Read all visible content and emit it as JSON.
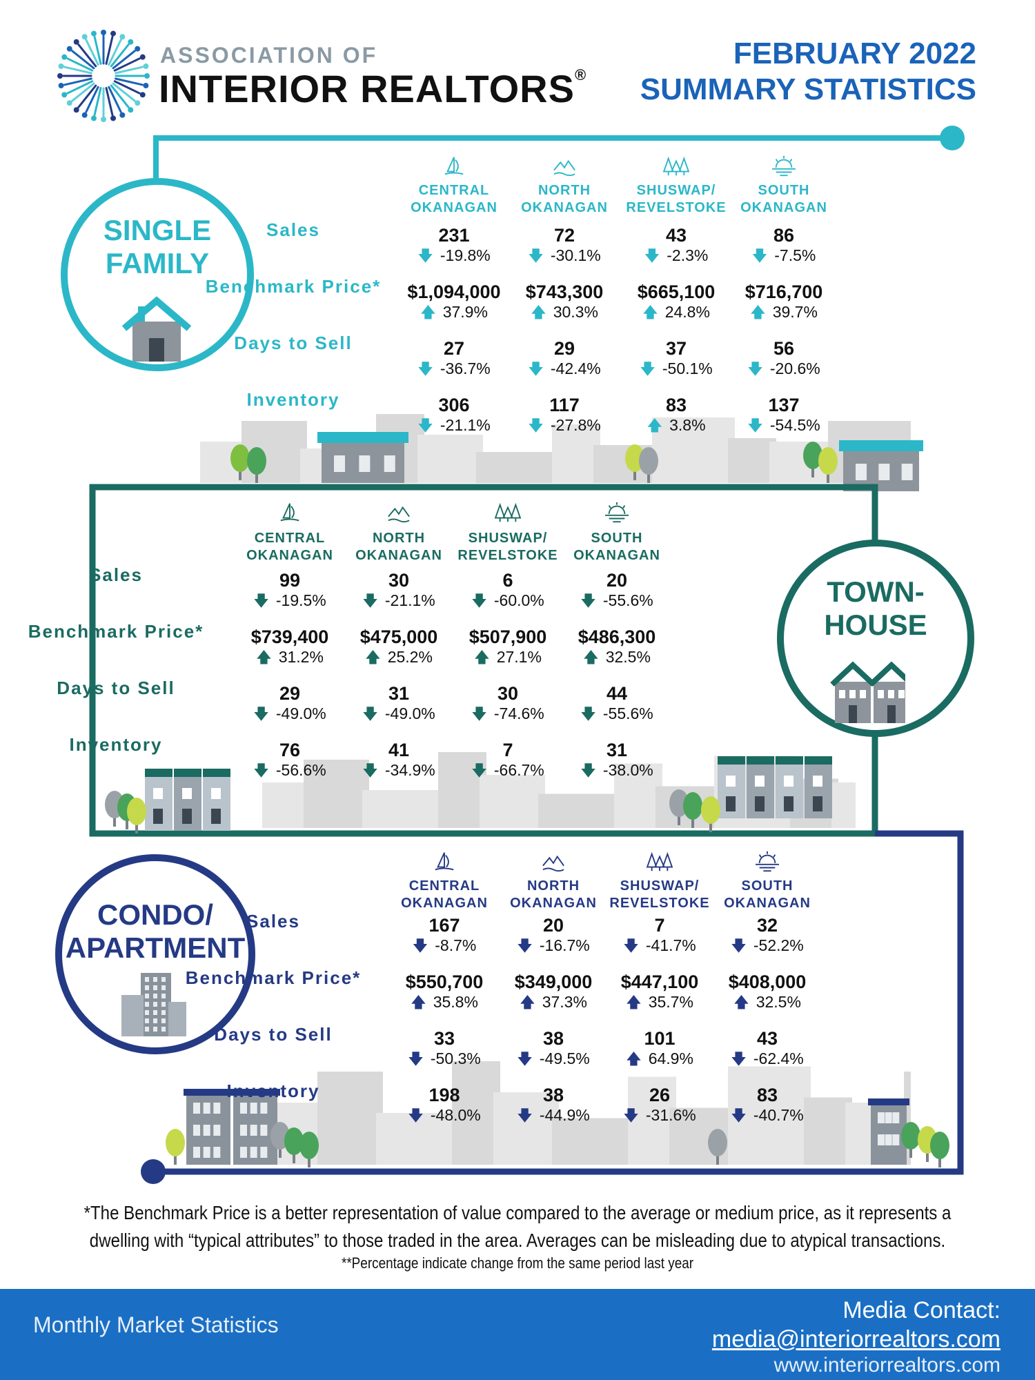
{
  "header": {
    "org_top": "ASSOCIATION OF",
    "org_main": "INTERIOR REALTORS",
    "registered": "®",
    "title_line1": "FEBRUARY 2022",
    "title_line2": "SUMMARY STATISTICS"
  },
  "colors": {
    "single_family": "#2bb7c8",
    "townhouse": "#1a6b61",
    "condo": "#253a85",
    "title_blue": "#1a63b8",
    "footer_blue": "#1a6fc4",
    "skyline_gray": "#d9d9d9"
  },
  "regions": [
    {
      "line1": "CENTRAL",
      "line2": "OKANAGAN",
      "icon": "sailboat-icon"
    },
    {
      "line1": "NORTH",
      "line2": "OKANAGAN",
      "icon": "mountains-icon"
    },
    {
      "line1": "SHUSWAP/",
      "line2": "REVELSTOKE",
      "icon": "trees-icon"
    },
    {
      "line1": "SOUTH",
      "line2": "OKANAGAN",
      "icon": "sunset-icon"
    }
  ],
  "row_labels": [
    "Sales",
    "Benchmark Price*",
    "Days to Sell",
    "Inventory"
  ],
  "sections": {
    "single_family": {
      "label_line1": "SINGLE",
      "label_line2": "FAMILY",
      "rows": [
        [
          {
            "v": "231",
            "c": "-19.8%",
            "d": "down"
          },
          {
            "v": "72",
            "c": "-30.1%",
            "d": "down"
          },
          {
            "v": "43",
            "c": "-2.3%",
            "d": "down"
          },
          {
            "v": "86",
            "c": "-7.5%",
            "d": "down"
          }
        ],
        [
          {
            "v": "$1,094,000",
            "c": "37.9%",
            "d": "up"
          },
          {
            "v": "$743,300",
            "c": "30.3%",
            "d": "up"
          },
          {
            "v": "$665,100",
            "c": "24.8%",
            "d": "up"
          },
          {
            "v": "$716,700",
            "c": "39.7%",
            "d": "up"
          }
        ],
        [
          {
            "v": "27",
            "c": "-36.7%",
            "d": "down"
          },
          {
            "v": "29",
            "c": "-42.4%",
            "d": "down"
          },
          {
            "v": "37",
            "c": "-50.1%",
            "d": "down"
          },
          {
            "v": "56",
            "c": "-20.6%",
            "d": "down"
          }
        ],
        [
          {
            "v": "306",
            "c": "-21.1%",
            "d": "down"
          },
          {
            "v": "117",
            "c": "-27.8%",
            "d": "down"
          },
          {
            "v": "83",
            "c": "3.8%",
            "d": "up"
          },
          {
            "v": "137",
            "c": "-54.5%",
            "d": "down"
          }
        ]
      ]
    },
    "townhouse": {
      "label_line1": "TOWN-",
      "label_line2": "HOUSE",
      "rows": [
        [
          {
            "v": "99",
            "c": "-19.5%",
            "d": "down"
          },
          {
            "v": "30",
            "c": "-21.1%",
            "d": "down"
          },
          {
            "v": "6",
            "c": "-60.0%",
            "d": "down"
          },
          {
            "v": "20",
            "c": "-55.6%",
            "d": "down"
          }
        ],
        [
          {
            "v": "$739,400",
            "c": "31.2%",
            "d": "up"
          },
          {
            "v": "$475,000",
            "c": "25.2%",
            "d": "up"
          },
          {
            "v": "$507,900",
            "c": "27.1%",
            "d": "up"
          },
          {
            "v": "$486,300",
            "c": "32.5%",
            "d": "up"
          }
        ],
        [
          {
            "v": "29",
            "c": "-49.0%",
            "d": "down"
          },
          {
            "v": "31",
            "c": "-49.0%",
            "d": "down"
          },
          {
            "v": "30",
            "c": "-74.6%",
            "d": "down"
          },
          {
            "v": "44",
            "c": "-55.6%",
            "d": "down"
          }
        ],
        [
          {
            "v": "76",
            "c": "-56.6%",
            "d": "down"
          },
          {
            "v": "41",
            "c": "-34.9%",
            "d": "down"
          },
          {
            "v": "7",
            "c": "-66.7%",
            "d": "down"
          },
          {
            "v": "31",
            "c": "-38.0%",
            "d": "down"
          }
        ]
      ]
    },
    "condo": {
      "label_line1": "CONDO/",
      "label_line2": "APARTMENT",
      "rows": [
        [
          {
            "v": "167",
            "c": "-8.7%",
            "d": "down"
          },
          {
            "v": "20",
            "c": "-16.7%",
            "d": "down"
          },
          {
            "v": "7",
            "c": "-41.7%",
            "d": "down"
          },
          {
            "v": "32",
            "c": "-52.2%",
            "d": "down"
          }
        ],
        [
          {
            "v": "$550,700",
            "c": "35.8%",
            "d": "up"
          },
          {
            "v": "$349,000",
            "c": "37.3%",
            "d": "up"
          },
          {
            "v": "$447,100",
            "c": "35.7%",
            "d": "up"
          },
          {
            "v": "$408,000",
            "c": "32.5%",
            "d": "up"
          }
        ],
        [
          {
            "v": "33",
            "c": "-50.3%",
            "d": "down"
          },
          {
            "v": "38",
            "c": "-49.5%",
            "d": "down"
          },
          {
            "v": "101",
            "c": "64.9%",
            "d": "up"
          },
          {
            "v": "43",
            "c": "-62.4%",
            "d": "down"
          }
        ],
        [
          {
            "v": "198",
            "c": "-48.0%",
            "d": "down"
          },
          {
            "v": "38",
            "c": "-44.9%",
            "d": "down"
          },
          {
            "v": "26",
            "c": "-31.6%",
            "d": "down"
          },
          {
            "v": "83",
            "c": "-40.7%",
            "d": "down"
          }
        ]
      ]
    }
  },
  "footnote": {
    "line1": "*The Benchmark Price is a better representation of value compared to the average or medium price, as it represents a",
    "line2": "dwelling with “typical attributes” to those traded in the area. Averages can be misleading due to atypical transactions.",
    "line3": "**Percentage indicate change from the same period last year"
  },
  "footer": {
    "left": "Monthly Market Statistics",
    "contact_label": "Media Contact:",
    "email": "media@interiorrealtors.com",
    "website": "www.interiorrealtors.com"
  }
}
